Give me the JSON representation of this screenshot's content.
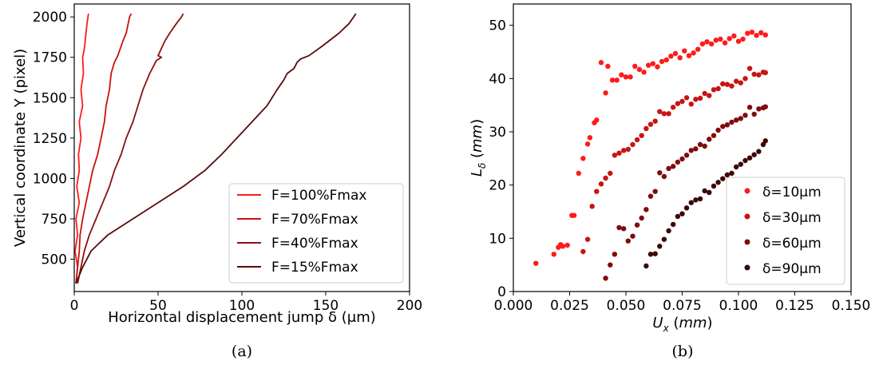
{
  "chart_data": [
    {
      "type": "line",
      "xlabel": "Horizontal displacement jump δ (μm)",
      "ylabel": "Vertical coordinate Y (pixel)",
      "xlim": [
        0,
        200
      ],
      "ylim": [
        300,
        2080
      ],
      "xticks": [
        "0",
        "50",
        "100",
        "150",
        "200"
      ],
      "xtick_values": [
        0,
        50,
        100,
        150,
        200
      ],
      "yticks": [
        "500",
        "750",
        "1000",
        "1250",
        "1500",
        "1750",
        "2000"
      ],
      "ytick_values": [
        500,
        750,
        1000,
        1250,
        1500,
        1750,
        2000
      ],
      "grid": false,
      "legend_position": "bottom-right",
      "caption": "(a)",
      "series": [
        {
          "name": "F=100%Fmax",
          "color": "#ff1a1a",
          "x": [
            1,
            2,
            0.5,
            2,
            1,
            3,
            1.5,
            3,
            2.5,
            4,
            3,
            5,
            4,
            5.5,
            5,
            6,
            6.5,
            7,
            7.5,
            8.5
          ],
          "y": [
            350,
            450,
            550,
            650,
            750,
            850,
            950,
            1050,
            1150,
            1250,
            1350,
            1450,
            1550,
            1650,
            1750,
            1800,
            1850,
            1900,
            1950,
            2020
          ]
        },
        {
          "name": "F=70%Fmax",
          "color": "#cc1010",
          "x": [
            1,
            2,
            3,
            3.5,
            5,
            7,
            9,
            11,
            14,
            16,
            18,
            19,
            21,
            22,
            24,
            26,
            29,
            31,
            32,
            33,
            34
          ],
          "y": [
            350,
            450,
            550,
            650,
            750,
            850,
            950,
            1050,
            1150,
            1250,
            1350,
            1450,
            1550,
            1650,
            1720,
            1760,
            1850,
            1900,
            1950,
            2000,
            2020
          ]
        },
        {
          "name": "F=40%Fmax",
          "color": "#8b1010",
          "x": [
            2,
            4,
            6,
            9,
            13,
            17,
            21,
            24,
            28,
            31,
            35,
            38,
            41,
            45,
            49,
            52,
            50,
            54,
            57,
            61,
            64,
            65
          ],
          "y": [
            350,
            450,
            550,
            650,
            750,
            850,
            950,
            1050,
            1150,
            1250,
            1350,
            1450,
            1550,
            1650,
            1730,
            1750,
            1760,
            1850,
            1900,
            1960,
            2000,
            2020
          ]
        },
        {
          "name": "F=15%Fmax",
          "color": "#5a0a0a",
          "x": [
            1,
            5,
            10,
            20,
            35,
            50,
            65,
            78,
            88,
            97,
            106,
            115,
            121,
            125,
            127,
            131,
            133,
            135,
            140,
            148,
            158,
            164,
            168
          ],
          "y": [
            350,
            450,
            550,
            650,
            750,
            850,
            950,
            1050,
            1150,
            1250,
            1350,
            1450,
            1550,
            1610,
            1650,
            1680,
            1720,
            1740,
            1760,
            1820,
            1900,
            1960,
            2020
          ]
        }
      ]
    },
    {
      "type": "scatter",
      "xlabel": "U_x (mm)",
      "ylabel": "L_δ (mm)",
      "xlim": [
        0,
        0.15
      ],
      "ylim": [
        0,
        54
      ],
      "xticks": [
        "0.000",
        "0.025",
        "0.050",
        "0.075",
        "0.100",
        "0.125",
        "0.150"
      ],
      "xtick_values": [
        0,
        0.025,
        0.05,
        0.075,
        0.1,
        0.125,
        0.15
      ],
      "yticks": [
        "0",
        "10",
        "20",
        "30",
        "40",
        "50"
      ],
      "ytick_values": [
        0,
        10,
        20,
        30,
        40,
        50
      ],
      "grid": false,
      "legend_position": "bottom-right",
      "caption": "(b)",
      "series": [
        {
          "name": "δ=10μm",
          "color": "#ff1a1a",
          "x": [
            0.01,
            0.018,
            0.02,
            0.021,
            0.022,
            0.024,
            0.026,
            0.027,
            0.029,
            0.031,
            0.033,
            0.034,
            0.036,
            0.037,
            0.039,
            0.041,
            0.042,
            0.044,
            0.046,
            0.048,
            0.05,
            0.052,
            0.054,
            0.056,
            0.058,
            0.06,
            0.062,
            0.064,
            0.066,
            0.068,
            0.07,
            0.072,
            0.074,
            0.076,
            0.078,
            0.08,
            0.082,
            0.084,
            0.086,
            0.088,
            0.09,
            0.092,
            0.094,
            0.096,
            0.098,
            0.1,
            0.102,
            0.104,
            0.106,
            0.108,
            0.11,
            0.112
          ],
          "y": [
            5.3,
            7,
            8.3,
            8.8,
            8.5,
            8.7,
            14.3,
            14.3,
            22.2,
            25,
            27.7,
            28.9,
            31.7,
            32.2,
            43,
            37.3,
            42.3,
            39.7,
            39.7,
            40.7,
            40.3,
            40.3,
            42.3,
            41.7,
            41.2,
            42.5,
            42.8,
            42.2,
            43.2,
            43.5,
            44.2,
            44.7,
            43.9,
            45.2,
            44.3,
            44.8,
            45.5,
            46.5,
            46.9,
            46.5,
            47.2,
            47.4,
            46.7,
            47.5,
            48,
            47,
            47.4,
            48.5,
            48.7,
            48.1,
            48.6,
            48.2
          ]
        },
        {
          "name": "δ=30μm",
          "color": "#c81414",
          "x": [
            0.031,
            0.033,
            0.035,
            0.037,
            0.039,
            0.041,
            0.043,
            0.045,
            0.047,
            0.049,
            0.051,
            0.053,
            0.055,
            0.057,
            0.059,
            0.061,
            0.063,
            0.065,
            0.067,
            0.069,
            0.071,
            0.073,
            0.075,
            0.077,
            0.079,
            0.081,
            0.083,
            0.085,
            0.087,
            0.089,
            0.091,
            0.093,
            0.095,
            0.097,
            0.099,
            0.101,
            0.103,
            0.105,
            0.107,
            0.109,
            0.111,
            0.112
          ],
          "y": [
            7.5,
            9.8,
            16,
            18.8,
            20.2,
            21.3,
            22.2,
            25.6,
            26,
            26.5,
            26.7,
            27.6,
            28.5,
            29.3,
            30.6,
            31.4,
            32,
            33.8,
            33.4,
            33.4,
            34.6,
            35.3,
            35.7,
            36.4,
            35.2,
            36.1,
            36.3,
            37.2,
            36.8,
            37.9,
            38.1,
            39,
            38.9,
            38.6,
            39.5,
            39.2,
            40,
            41.9,
            40.8,
            40.7,
            41.2,
            41.1
          ]
        },
        {
          "name": "δ=60μm",
          "color": "#800c0c",
          "x": [
            0.041,
            0.043,
            0.045,
            0.047,
            0.049,
            0.051,
            0.053,
            0.055,
            0.057,
            0.059,
            0.061,
            0.063,
            0.065,
            0.067,
            0.069,
            0.071,
            0.073,
            0.075,
            0.077,
            0.079,
            0.081,
            0.083,
            0.085,
            0.087,
            0.089,
            0.091,
            0.093,
            0.095,
            0.097,
            0.099,
            0.101,
            0.103,
            0.105,
            0.107,
            0.109,
            0.111,
            0.112
          ],
          "y": [
            2.5,
            5,
            7,
            12,
            11.8,
            9.5,
            10.4,
            12.5,
            13.8,
            15.4,
            17.9,
            18.8,
            22.3,
            21.6,
            23.1,
            23.5,
            24.3,
            24.9,
            25.6,
            26.5,
            26.8,
            27.6,
            27.3,
            28.6,
            29.3,
            30.3,
            31,
            31.3,
            31.8,
            32.2,
            32.5,
            33.1,
            34.6,
            33.3,
            34.3,
            34.5,
            34.7
          ]
        },
        {
          "name": "δ=90μm",
          "color": "#3d0606",
          "x": [
            0.059,
            0.061,
            0.063,
            0.065,
            0.067,
            0.069,
            0.071,
            0.073,
            0.075,
            0.077,
            0.079,
            0.081,
            0.083,
            0.085,
            0.087,
            0.089,
            0.091,
            0.093,
            0.095,
            0.097,
            0.099,
            0.101,
            0.103,
            0.105,
            0.107,
            0.109,
            0.111,
            0.112
          ],
          "y": [
            4.8,
            7,
            7.1,
            8.5,
            9.8,
            11.4,
            12.6,
            14.1,
            14.6,
            15.7,
            16.7,
            17.2,
            17.4,
            18.9,
            18.6,
            19.8,
            20.5,
            21.2,
            21.9,
            22.2,
            23.4,
            23.9,
            24.6,
            25.1,
            25.7,
            26.3,
            27.6,
            28.3
          ]
        }
      ]
    }
  ]
}
